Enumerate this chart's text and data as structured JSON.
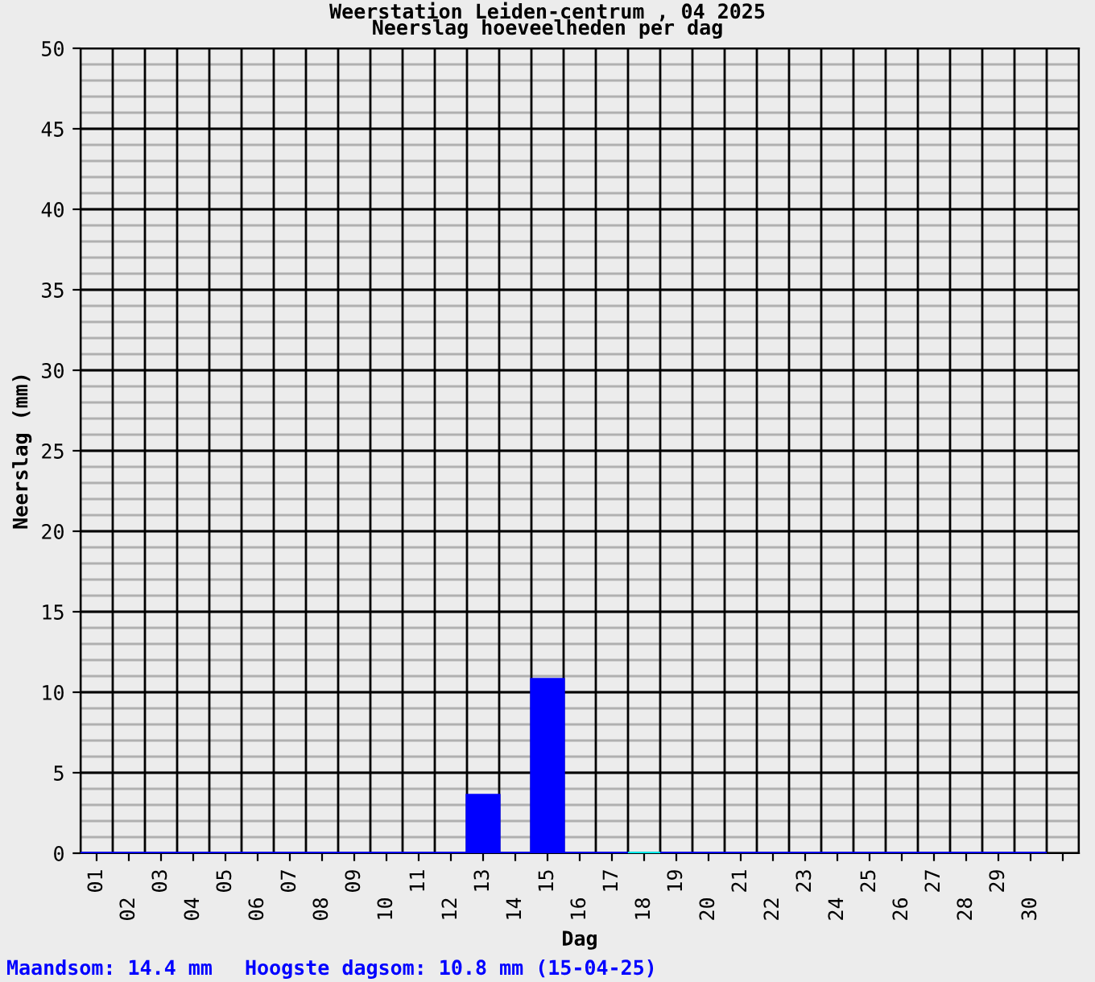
{
  "chart_data": {
    "type": "bar",
    "title": "Weerstation Leiden-centrum , 04 2025",
    "subtitle": "Neerslag hoeveelheden per dag",
    "xlabel": "Dag",
    "ylabel": "Neerslag (mm)",
    "categories": [
      "01",
      "02",
      "03",
      "04",
      "05",
      "06",
      "07",
      "08",
      "09",
      "10",
      "11",
      "12",
      "13",
      "14",
      "15",
      "16",
      "17",
      "18",
      "19",
      "20",
      "21",
      "22",
      "23",
      "24",
      "25",
      "26",
      "27",
      "28",
      "29",
      "30",
      null
    ],
    "values": [
      0,
      0,
      0,
      0,
      0,
      0,
      0,
      0,
      0,
      0,
      0,
      0,
      3.6,
      0,
      10.8,
      0,
      0,
      0,
      0,
      0,
      0,
      0,
      0,
      0,
      0,
      0,
      0,
      0,
      0,
      0,
      null
    ],
    "colors": [
      "#0000ff",
      "#0000ff",
      "#0000ff",
      "#0000ff",
      "#0000ff",
      "#0000ff",
      "#0000ff",
      "#0000ff",
      "#0000ff",
      "#0000ff",
      "#0000ff",
      "#0000ff",
      "#0000ff",
      "#0000ff",
      "#0000ff",
      "#0000ff",
      "#0000ff",
      "#00ffff",
      "#0000ff",
      "#0000ff",
      "#0000ff",
      "#0000ff",
      "#0000ff",
      "#0000ff",
      "#0000ff",
      "#0000ff",
      "#0000ff",
      "#0000ff",
      "#0000ff",
      "#0000ff",
      "#0000ff"
    ],
    "ylim": [
      0,
      50
    ],
    "yticks": [
      0,
      5,
      10,
      15,
      20,
      25,
      30,
      35,
      40,
      45,
      50
    ],
    "grid": true,
    "annotations": [
      "Maandsom: 14.4 mm",
      "Hoogste dagsom: 10.8 mm (15-04-25)"
    ]
  }
}
